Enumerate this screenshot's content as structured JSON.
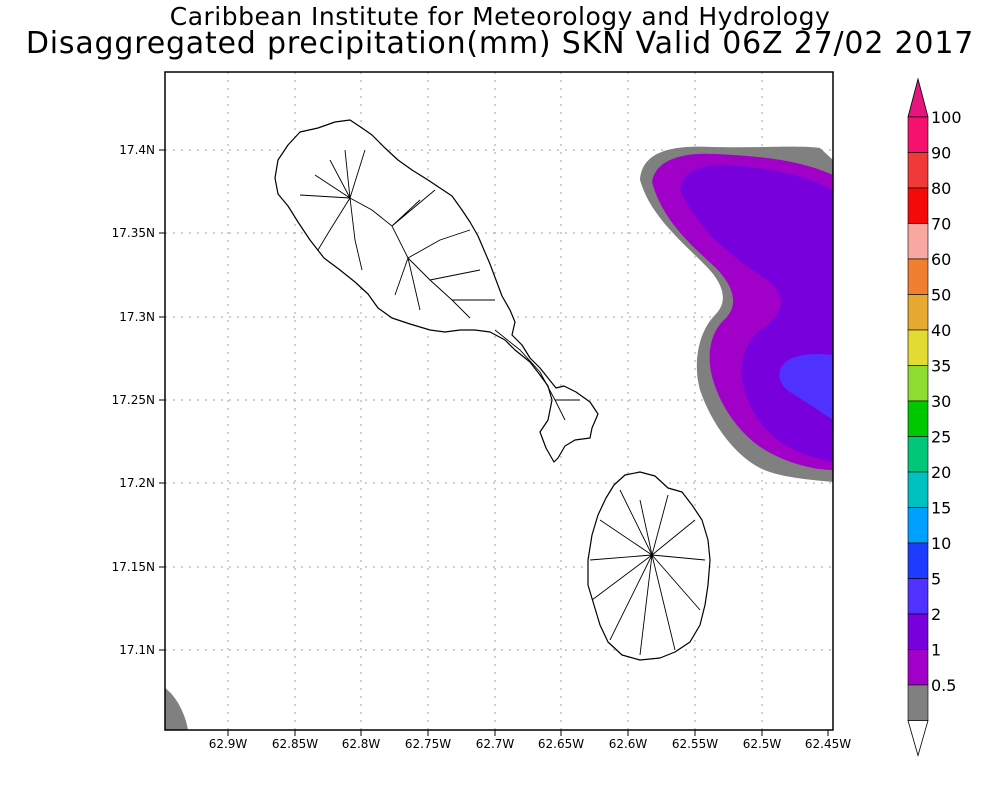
{
  "header": {
    "line1": "Caribbean Institute for Meteorology and Hydrology",
    "line2": "Disaggregated precipitation(mm) SKN Valid 06Z 27/02 2017"
  },
  "map": {
    "lon_range": [
      -62.94,
      -62.45
    ],
    "lat_range": [
      17.05,
      17.45
    ],
    "x_ticks": [
      "62.9W",
      "62.85W",
      "62.8W",
      "62.75W",
      "62.7W",
      "62.65W",
      "62.6W",
      "62.55W",
      "62.5W",
      "62.45W"
    ],
    "y_ticks": [
      "17.4N",
      "17.35N",
      "17.3N",
      "17.25N",
      "17.2N",
      "17.15N",
      "17.1N"
    ],
    "grid": true,
    "islands": [
      "St. Kitts",
      "Nevis"
    ]
  },
  "colorbar": {
    "labels": [
      "100",
      "90",
      "80",
      "70",
      "60",
      "50",
      "40",
      "35",
      "30",
      "25",
      "20",
      "15",
      "10",
      "5",
      "2",
      "1",
      "0.5"
    ],
    "colors": [
      "#f5126e",
      "#f03a3a",
      "#f50a0a",
      "#f8a8a0",
      "#f08030",
      "#e6aa32",
      "#e2dc32",
      "#8edc32",
      "#00c800",
      "#00c878",
      "#00c0c0",
      "#00a0ff",
      "#1e3cff",
      "#5032ff",
      "#7800dc",
      "#a000c8",
      "#808080"
    ],
    "top_arrow_color": "#e6147d",
    "bottom_arrow_color": "#ffffff"
  }
}
